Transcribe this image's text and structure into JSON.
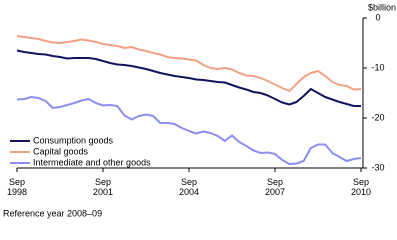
{
  "chart_data": {
    "type": "line",
    "y_label": "$billion",
    "note": "Reference year 2008–09",
    "x": [
      1998.75,
      1999.0,
      1999.25,
      1999.5,
      1999.75,
      2000.0,
      2000.25,
      2000.5,
      2000.75,
      2001.0,
      2001.25,
      2001.5,
      2001.75,
      2002.0,
      2002.25,
      2002.5,
      2002.75,
      2003.0,
      2003.25,
      2003.5,
      2003.75,
      2004.0,
      2004.25,
      2004.5,
      2004.75,
      2005.0,
      2005.25,
      2005.5,
      2005.75,
      2006.0,
      2006.25,
      2006.5,
      2006.75,
      2007.0,
      2007.25,
      2007.5,
      2007.75,
      2008.0,
      2008.25,
      2008.5,
      2008.75,
      2009.0,
      2009.25,
      2009.5,
      2009.75,
      2010.0,
      2010.25,
      2010.5,
      2010.75
    ],
    "series": [
      {
        "name": "Consumption goods",
        "color": "#14145e",
        "values": [
          -6.5,
          -6.8,
          -7.0,
          -7.2,
          -7.3,
          -7.6,
          -7.8,
          -8.1,
          -8.0,
          -8.0,
          -8.0,
          -8.2,
          -8.6,
          -9.0,
          -9.3,
          -9.4,
          -9.6,
          -9.9,
          -10.2,
          -10.6,
          -11.0,
          -11.3,
          -11.6,
          -11.8,
          -12.0,
          -12.3,
          -12.4,
          -12.6,
          -12.8,
          -12.9,
          -13.4,
          -13.9,
          -14.3,
          -14.8,
          -15.0,
          -15.5,
          -16.2,
          -16.9,
          -17.3,
          -16.8,
          -15.6,
          -14.2,
          -15.0,
          -15.8,
          -16.3,
          -16.8,
          -17.2,
          -17.6,
          -17.6
        ]
      },
      {
        "name": "Capital goods",
        "color": "#f2a184",
        "values": [
          -3.6,
          -3.8,
          -4.0,
          -4.2,
          -4.6,
          -4.9,
          -5.0,
          -4.8,
          -4.6,
          -4.3,
          -4.5,
          -4.8,
          -5.2,
          -5.4,
          -5.6,
          -6.0,
          -5.8,
          -6.3,
          -6.6,
          -7.0,
          -7.3,
          -7.8,
          -8.0,
          -8.1,
          -8.3,
          -8.5,
          -9.4,
          -10.0,
          -10.2,
          -10.0,
          -10.3,
          -11.0,
          -11.5,
          -11.6,
          -12.0,
          -12.6,
          -13.3,
          -14.0,
          -14.6,
          -13.2,
          -11.8,
          -11.0,
          -10.6,
          -11.6,
          -12.8,
          -13.4,
          -13.6,
          -14.3,
          -14.2
        ]
      },
      {
        "name": "Intermediate and other goods",
        "color": "#8b8ff0",
        "values": [
          -16.3,
          -16.2,
          -15.8,
          -16.0,
          -16.6,
          -18.0,
          -17.8,
          -17.4,
          -17.0,
          -16.5,
          -16.2,
          -17.0,
          -17.5,
          -17.4,
          -17.6,
          -19.5,
          -20.3,
          -19.6,
          -19.3,
          -19.6,
          -21.0,
          -21.0,
          -21.2,
          -22.0,
          -22.6,
          -23.1,
          -22.7,
          -23.0,
          -23.6,
          -24.6,
          -23.5,
          -24.8,
          -25.6,
          -26.5,
          -27.0,
          -26.9,
          -27.2,
          -28.4,
          -29.2,
          -29.1,
          -28.6,
          -26.0,
          -25.3,
          -25.3,
          -27.0,
          -27.8,
          -28.6,
          -28.2,
          -28.0
        ]
      }
    ],
    "xlim": [
      1998.75,
      2010.75
    ],
    "xticks": [
      {
        "value": 1998.75,
        "label": "Sep 1998"
      },
      {
        "value": 2001.75,
        "label": "Sep 2001"
      },
      {
        "value": 2004.75,
        "label": "Sep 2004"
      },
      {
        "value": 2007.75,
        "label": "Sep 2007"
      },
      {
        "value": 2010.75,
        "label": "Sep 2010"
      }
    ],
    "ylim": [
      -30,
      0
    ],
    "yticks": [
      0,
      -10,
      -20,
      -30
    ],
    "legend": "lower-left"
  }
}
